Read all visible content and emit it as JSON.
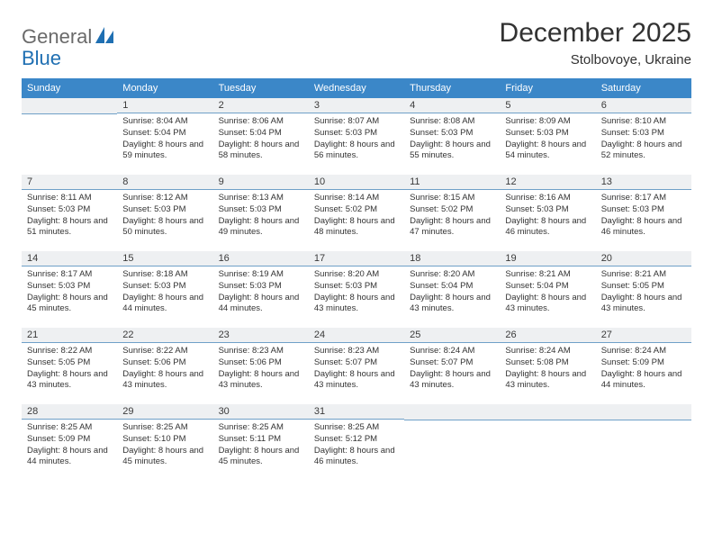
{
  "logo": {
    "text1": "General",
    "text2": "Blue"
  },
  "header": {
    "title": "December 2025",
    "location": "Stolbovoye, Ukraine"
  },
  "colors": {
    "header_bg": "#3b87c8",
    "header_text": "#ffffff",
    "daynum_bg": "#eef0f2",
    "daynum_border": "#6fa0c8",
    "logo_gray": "#6a6a6a",
    "logo_blue": "#1f6fb2",
    "page_bg": "#ffffff",
    "text": "#333333"
  },
  "weekdays": [
    "Sunday",
    "Monday",
    "Tuesday",
    "Wednesday",
    "Thursday",
    "Friday",
    "Saturday"
  ],
  "weeks": [
    [
      {
        "n": "",
        "sunrise": "",
        "sunset": "",
        "daylight": ""
      },
      {
        "n": "1",
        "sunrise": "Sunrise: 8:04 AM",
        "sunset": "Sunset: 5:04 PM",
        "daylight": "Daylight: 8 hours and 59 minutes."
      },
      {
        "n": "2",
        "sunrise": "Sunrise: 8:06 AM",
        "sunset": "Sunset: 5:04 PM",
        "daylight": "Daylight: 8 hours and 58 minutes."
      },
      {
        "n": "3",
        "sunrise": "Sunrise: 8:07 AM",
        "sunset": "Sunset: 5:03 PM",
        "daylight": "Daylight: 8 hours and 56 minutes."
      },
      {
        "n": "4",
        "sunrise": "Sunrise: 8:08 AM",
        "sunset": "Sunset: 5:03 PM",
        "daylight": "Daylight: 8 hours and 55 minutes."
      },
      {
        "n": "5",
        "sunrise": "Sunrise: 8:09 AM",
        "sunset": "Sunset: 5:03 PM",
        "daylight": "Daylight: 8 hours and 54 minutes."
      },
      {
        "n": "6",
        "sunrise": "Sunrise: 8:10 AM",
        "sunset": "Sunset: 5:03 PM",
        "daylight": "Daylight: 8 hours and 52 minutes."
      }
    ],
    [
      {
        "n": "7",
        "sunrise": "Sunrise: 8:11 AM",
        "sunset": "Sunset: 5:03 PM",
        "daylight": "Daylight: 8 hours and 51 minutes."
      },
      {
        "n": "8",
        "sunrise": "Sunrise: 8:12 AM",
        "sunset": "Sunset: 5:03 PM",
        "daylight": "Daylight: 8 hours and 50 minutes."
      },
      {
        "n": "9",
        "sunrise": "Sunrise: 8:13 AM",
        "sunset": "Sunset: 5:03 PM",
        "daylight": "Daylight: 8 hours and 49 minutes."
      },
      {
        "n": "10",
        "sunrise": "Sunrise: 8:14 AM",
        "sunset": "Sunset: 5:02 PM",
        "daylight": "Daylight: 8 hours and 48 minutes."
      },
      {
        "n": "11",
        "sunrise": "Sunrise: 8:15 AM",
        "sunset": "Sunset: 5:02 PM",
        "daylight": "Daylight: 8 hours and 47 minutes."
      },
      {
        "n": "12",
        "sunrise": "Sunrise: 8:16 AM",
        "sunset": "Sunset: 5:03 PM",
        "daylight": "Daylight: 8 hours and 46 minutes."
      },
      {
        "n": "13",
        "sunrise": "Sunrise: 8:17 AM",
        "sunset": "Sunset: 5:03 PM",
        "daylight": "Daylight: 8 hours and 46 minutes."
      }
    ],
    [
      {
        "n": "14",
        "sunrise": "Sunrise: 8:17 AM",
        "sunset": "Sunset: 5:03 PM",
        "daylight": "Daylight: 8 hours and 45 minutes."
      },
      {
        "n": "15",
        "sunrise": "Sunrise: 8:18 AM",
        "sunset": "Sunset: 5:03 PM",
        "daylight": "Daylight: 8 hours and 44 minutes."
      },
      {
        "n": "16",
        "sunrise": "Sunrise: 8:19 AM",
        "sunset": "Sunset: 5:03 PM",
        "daylight": "Daylight: 8 hours and 44 minutes."
      },
      {
        "n": "17",
        "sunrise": "Sunrise: 8:20 AM",
        "sunset": "Sunset: 5:03 PM",
        "daylight": "Daylight: 8 hours and 43 minutes."
      },
      {
        "n": "18",
        "sunrise": "Sunrise: 8:20 AM",
        "sunset": "Sunset: 5:04 PM",
        "daylight": "Daylight: 8 hours and 43 minutes."
      },
      {
        "n": "19",
        "sunrise": "Sunrise: 8:21 AM",
        "sunset": "Sunset: 5:04 PM",
        "daylight": "Daylight: 8 hours and 43 minutes."
      },
      {
        "n": "20",
        "sunrise": "Sunrise: 8:21 AM",
        "sunset": "Sunset: 5:05 PM",
        "daylight": "Daylight: 8 hours and 43 minutes."
      }
    ],
    [
      {
        "n": "21",
        "sunrise": "Sunrise: 8:22 AM",
        "sunset": "Sunset: 5:05 PM",
        "daylight": "Daylight: 8 hours and 43 minutes."
      },
      {
        "n": "22",
        "sunrise": "Sunrise: 8:22 AM",
        "sunset": "Sunset: 5:06 PM",
        "daylight": "Daylight: 8 hours and 43 minutes."
      },
      {
        "n": "23",
        "sunrise": "Sunrise: 8:23 AM",
        "sunset": "Sunset: 5:06 PM",
        "daylight": "Daylight: 8 hours and 43 minutes."
      },
      {
        "n": "24",
        "sunrise": "Sunrise: 8:23 AM",
        "sunset": "Sunset: 5:07 PM",
        "daylight": "Daylight: 8 hours and 43 minutes."
      },
      {
        "n": "25",
        "sunrise": "Sunrise: 8:24 AM",
        "sunset": "Sunset: 5:07 PM",
        "daylight": "Daylight: 8 hours and 43 minutes."
      },
      {
        "n": "26",
        "sunrise": "Sunrise: 8:24 AM",
        "sunset": "Sunset: 5:08 PM",
        "daylight": "Daylight: 8 hours and 43 minutes."
      },
      {
        "n": "27",
        "sunrise": "Sunrise: 8:24 AM",
        "sunset": "Sunset: 5:09 PM",
        "daylight": "Daylight: 8 hours and 44 minutes."
      }
    ],
    [
      {
        "n": "28",
        "sunrise": "Sunrise: 8:25 AM",
        "sunset": "Sunset: 5:09 PM",
        "daylight": "Daylight: 8 hours and 44 minutes."
      },
      {
        "n": "29",
        "sunrise": "Sunrise: 8:25 AM",
        "sunset": "Sunset: 5:10 PM",
        "daylight": "Daylight: 8 hours and 45 minutes."
      },
      {
        "n": "30",
        "sunrise": "Sunrise: 8:25 AM",
        "sunset": "Sunset: 5:11 PM",
        "daylight": "Daylight: 8 hours and 45 minutes."
      },
      {
        "n": "31",
        "sunrise": "Sunrise: 8:25 AM",
        "sunset": "Sunset: 5:12 PM",
        "daylight": "Daylight: 8 hours and 46 minutes."
      },
      {
        "n": "",
        "sunrise": "",
        "sunset": "",
        "daylight": ""
      },
      {
        "n": "",
        "sunrise": "",
        "sunset": "",
        "daylight": ""
      },
      {
        "n": "",
        "sunrise": "",
        "sunset": "",
        "daylight": ""
      }
    ]
  ]
}
